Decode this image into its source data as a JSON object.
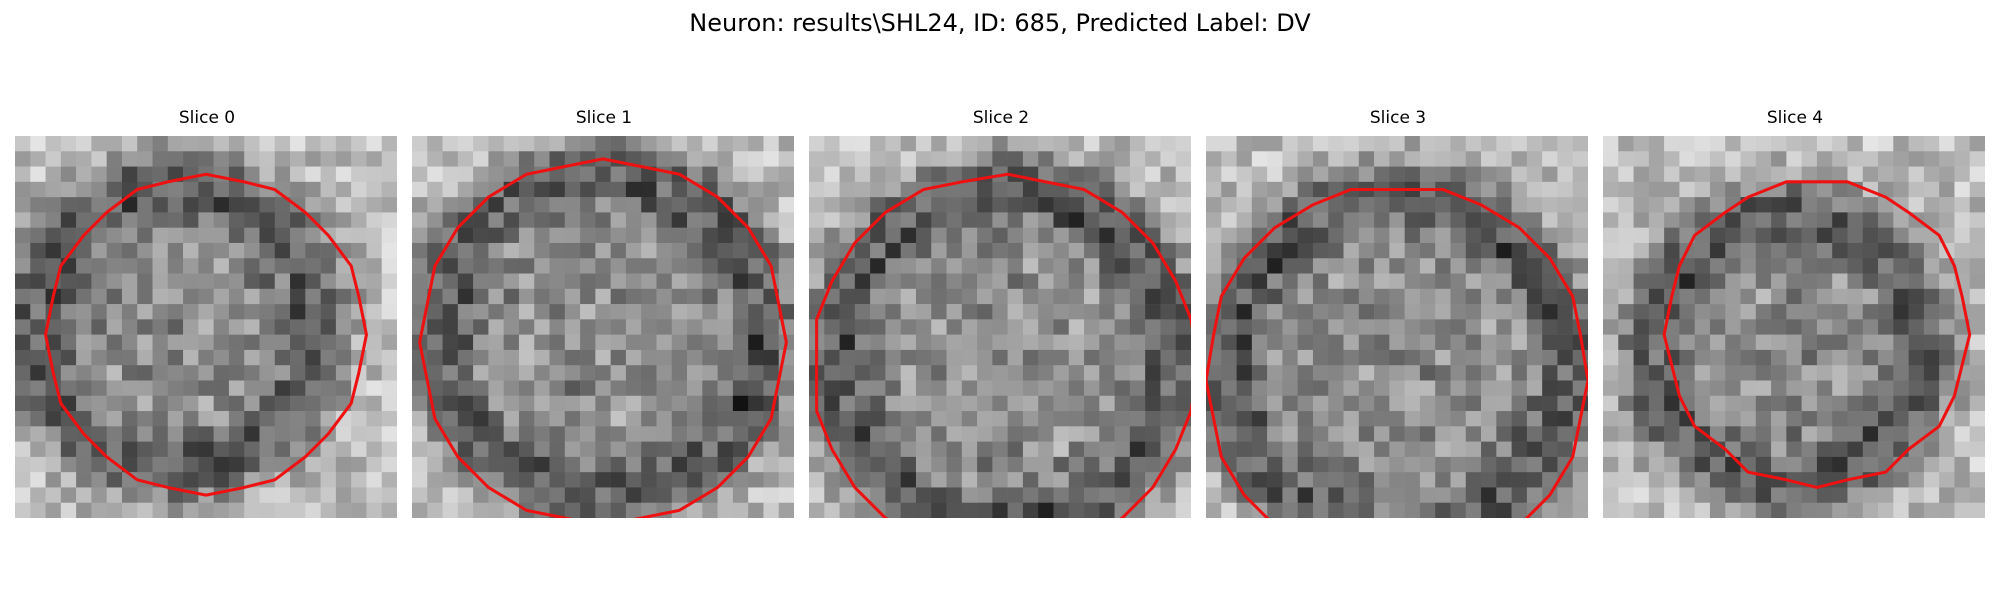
{
  "figure": {
    "title": "Neuron: results\\SHL24, ID: 685, Predicted Label: DV",
    "contour_color": "#ee1111",
    "panels": [
      {
        "title": "Slice 0",
        "contour": {
          "cx": 12.5,
          "cy": 13.0,
          "r": 10.5
        },
        "dark_center": {
          "cx": 10.5,
          "cy": 12.5
        }
      },
      {
        "title": "Slice 1",
        "contour": {
          "cx": 12.5,
          "cy": 13.5,
          "r": 12.0
        },
        "dark_center": {
          "cx": 12.5,
          "cy": 13.0
        }
      },
      {
        "title": "Slice 2",
        "contour": {
          "cx": 12.8,
          "cy": 15.0,
          "r": 12.5
        },
        "dark_center": {
          "cx": 12.8,
          "cy": 14.5
        }
      },
      {
        "title": "Slice 3",
        "contour": {
          "cx": 12.5,
          "cy": 15.8,
          "r": 12.5
        },
        "dark_center": {
          "cx": 12.5,
          "cy": 15.0
        }
      },
      {
        "title": "Slice 4",
        "contour": {
          "cx": 14.0,
          "cy": 12.8,
          "r": 10.0
        },
        "dark_center": {
          "cx": 12.0,
          "cy": 14.0
        }
      }
    ]
  }
}
